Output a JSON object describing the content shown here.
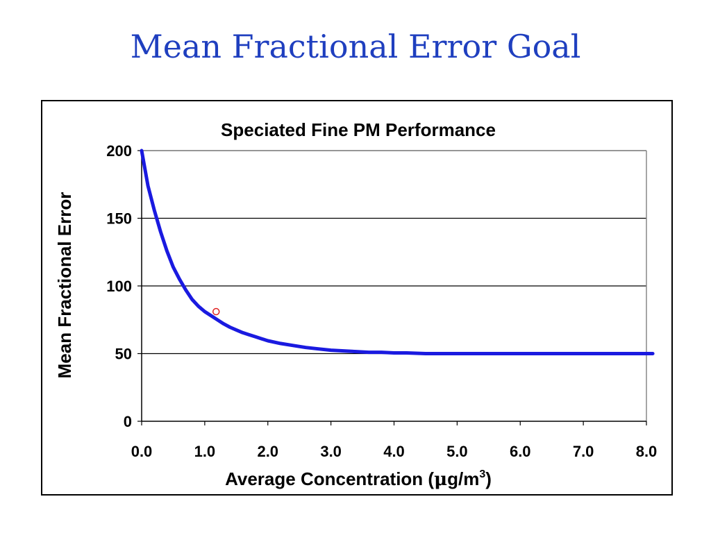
{
  "slide": {
    "title": "Mean Fractional Error Goal"
  },
  "chart_data": {
    "type": "line",
    "title": "Speciated Fine PM Performance",
    "xlabel": "Average Concentration (μg/m3)",
    "xlabel_parts": {
      "main": "Average Concentration (",
      "mu": "μ",
      "unit": "g/m",
      "sup": "3",
      "close": ")"
    },
    "ylabel": "Mean Fractional Error",
    "xlim": [
      0,
      8
    ],
    "ylim": [
      0,
      200
    ],
    "xticks": [
      "0.0",
      "1.0",
      "2.0",
      "3.0",
      "4.0",
      "5.0",
      "6.0",
      "7.0",
      "8.0"
    ],
    "yticks": [
      "0",
      "50",
      "100",
      "150",
      "200"
    ],
    "grid": "horizontal",
    "series": [
      {
        "color": "#1a1ae0",
        "x": [
          0.0,
          0.1,
          0.2,
          0.3,
          0.4,
          0.5,
          0.6,
          0.7,
          0.8,
          0.9,
          1.0,
          1.1,
          1.2,
          1.3,
          1.4,
          1.5,
          1.6,
          1.7,
          1.8,
          1.9,
          2.0,
          2.2,
          2.4,
          2.6,
          2.8,
          3.0,
          3.2,
          3.4,
          3.6,
          3.8,
          4.0,
          4.2,
          4.5,
          5.0,
          5.5,
          6.0,
          6.5,
          7.0,
          7.5,
          8.1
        ],
        "y": [
          200.0,
          174.0,
          156.0,
          140.0,
          126.0,
          114.0,
          105.0,
          97.0,
          90.0,
          85.0,
          81.0,
          78.0,
          75.0,
          72.0,
          69.5,
          67.5,
          65.5,
          64.0,
          62.5,
          61.0,
          59.5,
          57.5,
          56.0,
          54.5,
          53.5,
          52.5,
          52.0,
          51.5,
          51.0,
          51.0,
          50.5,
          50.5,
          50.0,
          50.0,
          50.0,
          50.0,
          50.0,
          50.0,
          50.0,
          50.0
        ]
      }
    ],
    "marker": {
      "x": 1.18,
      "y": 81,
      "color": "#e02020"
    }
  }
}
